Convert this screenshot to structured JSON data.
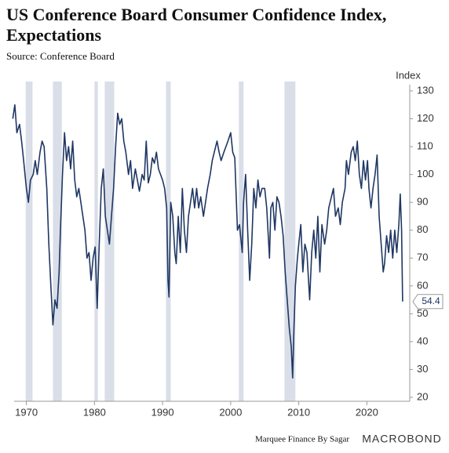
{
  "chart_data": {
    "type": "line",
    "title": "US Conference Board Consumer Confidence Index, Expectations",
    "subtitle": "Source: Conference Board",
    "ylabel": "Index",
    "footer": "Marquee Finance By Sagar",
    "brand": "MACROBOND",
    "color": "#1f3763",
    "recession_color": "#d9dee8",
    "recessions": [
      [
        1969.9,
        1970.9
      ],
      [
        1973.9,
        1975.2
      ],
      [
        1980.0,
        1980.5
      ],
      [
        1981.5,
        1982.9
      ],
      [
        1990.5,
        1991.2
      ],
      [
        2001.2,
        2001.9
      ],
      [
        2007.9,
        2009.5
      ]
    ],
    "xlim": [
      1968.2,
      2026.3
    ],
    "xticks": [
      1970,
      1980,
      1990,
      2000,
      2010,
      2020
    ],
    "ylim": [
      20,
      130
    ],
    "yticks": [
      20,
      30,
      40,
      50,
      60,
      70,
      80,
      90,
      100,
      110,
      120,
      130
    ],
    "grid": false,
    "x": [
      1968.0,
      1968.3,
      1968.6,
      1969.0,
      1969.3,
      1969.6,
      1970.0,
      1970.3,
      1970.6,
      1971.0,
      1971.3,
      1971.6,
      1972.0,
      1972.3,
      1972.6,
      1973.0,
      1973.3,
      1973.6,
      1973.9,
      1974.2,
      1974.5,
      1974.8,
      1975.0,
      1975.3,
      1975.6,
      1975.9,
      1976.2,
      1976.5,
      1976.8,
      1977.1,
      1977.4,
      1977.7,
      1978.0,
      1978.3,
      1978.6,
      1978.9,
      1979.2,
      1979.5,
      1979.8,
      1980.1,
      1980.4,
      1980.7,
      1981.0,
      1981.3,
      1981.6,
      1981.9,
      1982.2,
      1982.5,
      1982.8,
      1983.1,
      1983.4,
      1983.7,
      1984.0,
      1984.3,
      1984.6,
      1985.0,
      1985.3,
      1985.6,
      1986.0,
      1986.3,
      1986.6,
      1987.0,
      1987.3,
      1987.6,
      1987.9,
      1988.2,
      1988.5,
      1988.8,
      1989.1,
      1989.4,
      1989.7,
      1990.0,
      1990.3,
      1990.6,
      1990.8,
      1990.95,
      1991.2,
      1991.5,
      1991.8,
      1992.0,
      1992.3,
      1992.6,
      1992.9,
      1993.2,
      1993.5,
      1993.8,
      1994.1,
      1994.4,
      1994.7,
      1995.0,
      1995.3,
      1995.6,
      1996.0,
      1996.3,
      1996.6,
      1997.0,
      1997.3,
      1997.6,
      1998.0,
      1998.3,
      1998.6,
      1999.0,
      1999.3,
      1999.6,
      2000.0,
      2000.3,
      2000.6,
      2001.0,
      2001.3,
      2001.7,
      2001.9,
      2002.2,
      2002.5,
      2002.8,
      2003.1,
      2003.4,
      2003.7,
      2004.0,
      2004.3,
      2004.6,
      2005.0,
      2005.3,
      2005.7,
      2005.9,
      2006.2,
      2006.5,
      2006.8,
      2007.1,
      2007.4,
      2007.7,
      2008.0,
      2008.3,
      2008.6,
      2008.9,
      2009.1,
      2009.3,
      2009.5,
      2009.8,
      2010.0,
      2010.3,
      2010.6,
      2010.9,
      2011.2,
      2011.6,
      2011.9,
      2012.2,
      2012.5,
      2012.8,
      2013.1,
      2013.4,
      2013.8,
      2014.1,
      2014.4,
      2014.8,
      2015.1,
      2015.4,
      2015.8,
      2016.1,
      2016.4,
      2016.8,
      2017.0,
      2017.3,
      2017.7,
      2018.0,
      2018.3,
      2018.6,
      2018.9,
      2019.2,
      2019.5,
      2019.8,
      2020.1,
      2020.3,
      2020.6,
      2020.9,
      2021.2,
      2021.5,
      2021.8,
      2022.1,
      2022.4,
      2022.6,
      2022.9,
      2023.2,
      2023.5,
      2023.8,
      2024.1,
      2024.4,
      2024.7,
      2024.9,
      2025.1,
      2025.25
    ],
    "values": [
      120,
      125,
      115,
      118,
      112,
      105,
      95,
      90,
      98,
      100,
      105,
      100,
      108,
      112,
      110,
      95,
      75,
      60,
      46,
      55,
      52,
      65,
      80,
      100,
      115,
      105,
      110,
      102,
      112,
      98,
      92,
      95,
      90,
      85,
      80,
      70,
      72,
      62,
      70,
      74,
      52,
      75,
      95,
      102,
      85,
      80,
      75,
      85,
      95,
      110,
      122,
      118,
      120,
      112,
      108,
      100,
      105,
      95,
      102,
      98,
      94,
      100,
      98,
      112,
      97,
      100,
      106,
      104,
      108,
      102,
      100,
      98,
      95,
      88,
      62,
      56,
      90,
      85,
      72,
      68,
      85,
      72,
      95,
      80,
      72,
      85,
      90,
      95,
      88,
      95,
      88,
      92,
      85,
      90,
      95,
      100,
      105,
      108,
      112,
      108,
      105,
      108,
      110,
      112,
      115,
      108,
      106,
      80,
      82,
      72,
      90,
      100,
      80,
      62,
      75,
      95,
      88,
      98,
      92,
      95,
      95,
      88,
      70,
      88,
      90,
      80,
      92,
      90,
      85,
      78,
      65,
      55,
      45,
      38,
      27,
      45,
      60,
      70,
      75,
      82,
      65,
      75,
      72,
      55,
      72,
      80,
      70,
      85,
      65,
      82,
      75,
      80,
      88,
      92,
      95,
      85,
      88,
      82,
      90,
      95,
      105,
      100,
      108,
      110,
      105,
      112,
      100,
      95,
      105,
      98,
      105,
      95,
      88,
      95,
      100,
      107,
      85,
      75,
      65,
      68,
      78,
      72,
      80,
      70,
      80,
      72,
      82,
      93,
      80,
      54.4
    ]
  }
}
